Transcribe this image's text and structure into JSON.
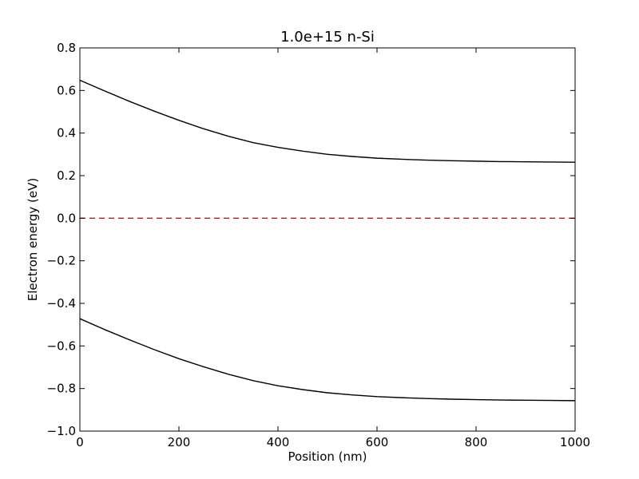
{
  "chart_data": {
    "type": "line",
    "title": "1.0e+15 n-Si",
    "xlabel": "Position (nm)",
    "ylabel": "Electron energy (eV)",
    "xlim": [
      0,
      1000
    ],
    "ylim": [
      -1.0,
      0.8
    ],
    "xticks": [
      0,
      200,
      400,
      600,
      800,
      1000
    ],
    "xtick_labels": [
      "0",
      "200",
      "400",
      "600",
      "800",
      "1000"
    ],
    "yticks": [
      -1.0,
      -0.8,
      -0.6,
      -0.4,
      -0.2,
      0.0,
      0.2,
      0.4,
      0.6,
      0.8
    ],
    "ytick_labels": [
      "−1.0",
      "−0.8",
      "−0.6",
      "−0.4",
      "−0.2",
      "0.0",
      "0.2",
      "0.4",
      "0.6",
      "0.8"
    ],
    "grid": false,
    "legend": "none",
    "series": [
      {
        "color": "#000000",
        "style": "solid",
        "x": [
          0,
          50,
          100,
          150,
          200,
          250,
          300,
          350,
          400,
          450,
          500,
          550,
          600,
          650,
          700,
          750,
          800,
          850,
          900,
          950,
          1000
        ],
        "y": [
          0.648,
          0.598,
          0.549,
          0.503,
          0.46,
          0.42,
          0.385,
          0.355,
          0.333,
          0.315,
          0.3,
          0.29,
          0.282,
          0.277,
          0.273,
          0.27,
          0.268,
          0.266,
          0.265,
          0.264,
          0.263
        ]
      },
      {
        "color": "#000000",
        "style": "solid",
        "x": [
          0,
          50,
          100,
          150,
          200,
          250,
          300,
          350,
          400,
          450,
          500,
          550,
          600,
          650,
          700,
          750,
          800,
          850,
          900,
          950,
          1000
        ],
        "y": [
          -0.472,
          -0.523,
          -0.571,
          -0.617,
          -0.66,
          -0.698,
          -0.733,
          -0.763,
          -0.787,
          -0.805,
          -0.82,
          -0.83,
          -0.838,
          -0.843,
          -0.847,
          -0.85,
          -0.852,
          -0.854,
          -0.855,
          -0.856,
          -0.857
        ]
      },
      {
        "color": "#ff0000",
        "style": "dashed",
        "x": [
          0,
          1000
        ],
        "y": [
          0.0,
          0.0
        ]
      }
    ]
  }
}
